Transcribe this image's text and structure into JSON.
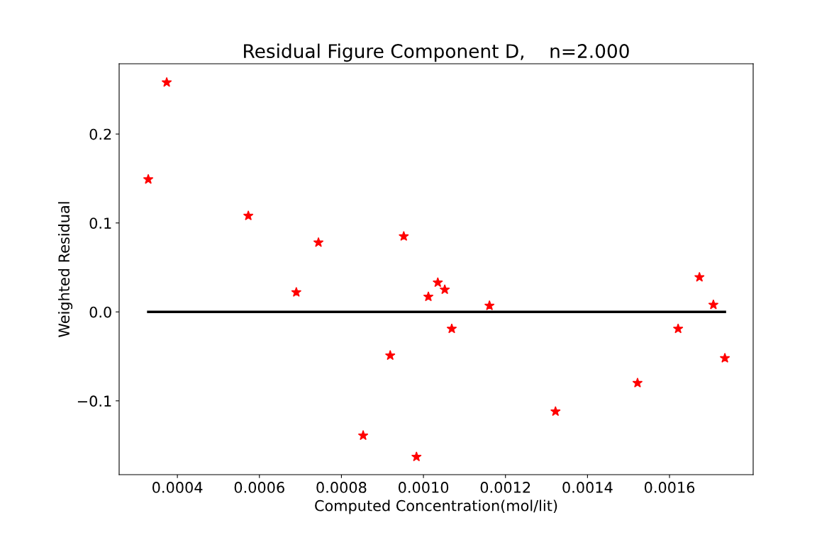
{
  "chart_data": {
    "type": "scatter",
    "title": "Residual Figure Component D,    n=2.000",
    "xlabel": "Computed Concentration(mol/lit)",
    "ylabel": "Weighted Residual",
    "series": [
      {
        "color": "#ff0000",
        "marker": "star",
        "x": [
          0.000329,
          0.000374,
          0.000573,
          0.00069,
          0.000744,
          0.000853,
          0.000919,
          0.000952,
          0.000983,
          0.001012,
          0.001035,
          0.001052,
          0.001069,
          0.001161,
          0.001322,
          0.001522,
          0.001621,
          0.001673,
          0.001707,
          0.001735
        ],
        "values": [
          0.149,
          0.258,
          0.108,
          0.022,
          0.078,
          -0.139,
          -0.049,
          0.085,
          -0.163,
          0.017,
          0.033,
          0.025,
          -0.019,
          0.007,
          -0.112,
          -0.08,
          -0.019,
          0.039,
          0.008,
          -0.052
        ]
      },
      {
        "type": "line",
        "color": "#000000",
        "marker": "none",
        "x": [
          0.000329,
          0.001735
        ],
        "values": [
          0,
          0
        ]
      }
    ],
    "xlim": [
      0.000258,
      0.001804
    ],
    "ylim": [
      -0.183,
      0.279
    ],
    "xticks": [
      {
        "value": 0.0004,
        "label": "0.0004"
      },
      {
        "value": 0.0006,
        "label": "0.0006"
      },
      {
        "value": 0.0008,
        "label": "0.0008"
      },
      {
        "value": 0.001,
        "label": "0.0010"
      },
      {
        "value": 0.0012,
        "label": "0.0012"
      },
      {
        "value": 0.0014,
        "label": "0.0014"
      },
      {
        "value": 0.0016,
        "label": "0.0016"
      }
    ],
    "yticks": [
      {
        "value": -0.1,
        "label": "−0.1"
      },
      {
        "value": 0,
        "label": "0.0"
      },
      {
        "value": 0.1,
        "label": "0.1"
      },
      {
        "value": 0.2,
        "label": "0.2"
      }
    ],
    "grid": false,
    "legend": false
  }
}
